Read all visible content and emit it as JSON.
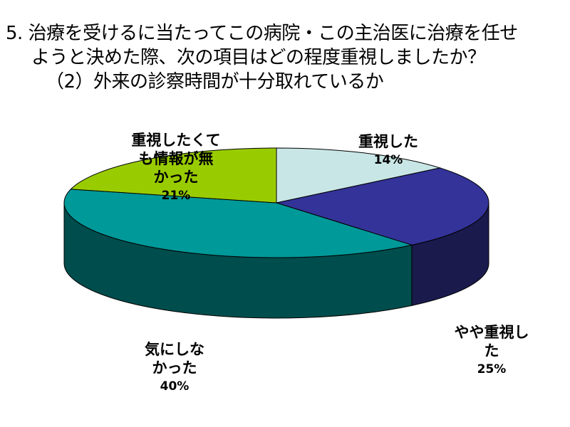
{
  "title": {
    "line1": "5. 治療を受けるに当たってこの病院・この主治医に治療を任せ",
    "line2": "ようと決めた際、次の項目はどの程度重視しましたか？",
    "line3": "（2）外来の診察時間が十分取れているか"
  },
  "chart_data": {
    "type": "pie",
    "title": "5. 治療を受けるに当たってこの病院・この主治医に治療を任せようと決めた際、次の項目はどの程度重視しましたか？ （2）外来の診察時間が十分取れているか",
    "three_d": true,
    "slices": [
      {
        "label": "重視した",
        "value": 14,
        "pct_label": "14%",
        "color": "#c9e6e6",
        "side_color": "#8fb3b3"
      },
      {
        "label": "やや重視した",
        "value": 25,
        "pct_label": "25%",
        "color": "#333399",
        "side_color": "#1a1a4d"
      },
      {
        "label": "気にしなかった",
        "value": 40,
        "pct_label": "40%",
        "color": "#009999",
        "side_color": "#004d4d"
      },
      {
        "label": "重視したくても情報が無かった",
        "value": 21,
        "pct_label": "21%",
        "color": "#99cc00",
        "side_color": "#4d6600"
      }
    ],
    "legend": "none",
    "label_placement": "outside"
  },
  "labels": [
    {
      "text": "重視した",
      "pct": "14%"
    },
    {
      "text": "やや重視し\nた",
      "pct": "25%"
    },
    {
      "text": "気にしな\nかった",
      "pct": "40%"
    },
    {
      "text": "重視したくて\nも情報が無\nかった",
      "pct": "21%"
    }
  ]
}
